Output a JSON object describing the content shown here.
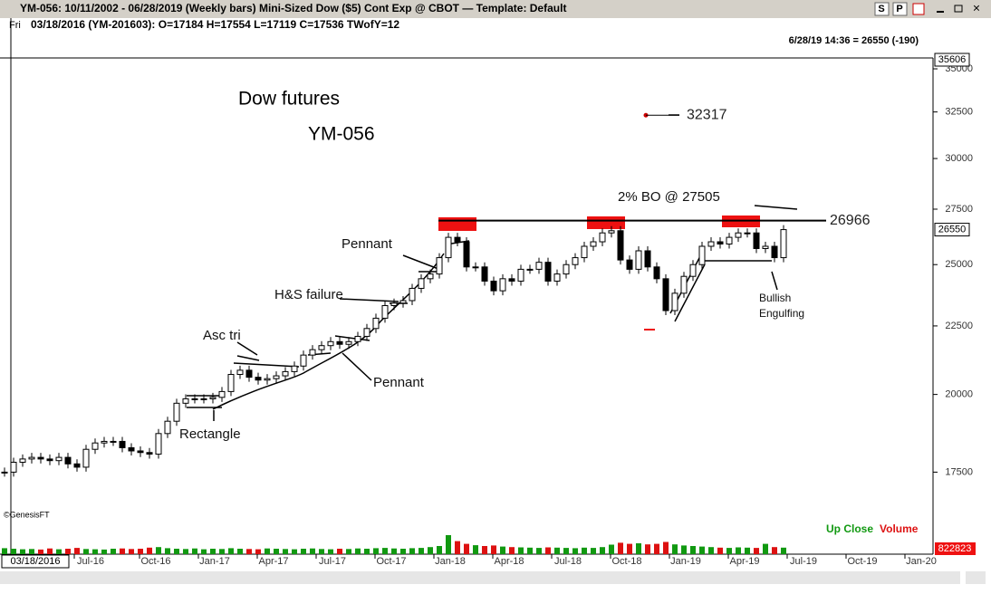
{
  "chart_data": {
    "type": "candlestick",
    "header": "YM-056:  10/11/2002 - 06/28/2019  (Weekly bars)   Mini-Sized Dow ($5) Cont Exp @ CBOT  —  Template: Default",
    "buttons": [
      "S",
      "P"
    ],
    "subheader_day": "Fri",
    "subheader": "03/18/2016 (YM-201603):  O=17184  H=17554  L=17119  C=17536  TWofY=12",
    "last_quote": "6/28/19 14:36 = 26550 (-190)",
    "title": "Dow futures",
    "subtitle": "YM-056",
    "copyright": "©GenesisFT",
    "start_date": "03/18/2016",
    "legend": [
      {
        "name": "Up Close",
        "color": "#119911"
      },
      {
        "name": "Volume",
        "color": "#dd1111"
      }
    ],
    "log_scale": true,
    "ylim": [
      16100,
      35550
    ],
    "yticks": [
      17500,
      20000,
      22500,
      25000,
      27500,
      30000,
      32500,
      35000
    ],
    "price_tags": [
      35606,
      26550
    ],
    "volume_tag": 822823,
    "vlim": [
      0,
      1000000
    ],
    "xtick_labels": [
      "Jul-16",
      "Oct-16",
      "Jan-17",
      "Apr-17",
      "Jul-17",
      "Oct-17",
      "Jan-18",
      "Apr-18",
      "Jul-18",
      "Oct-18",
      "Jan-19",
      "Apr-19",
      "Jul-19",
      "Oct-19",
      "Jan-20"
    ],
    "level": {
      "value": 26966,
      "label": "26966"
    },
    "target": {
      "value": 32317,
      "label": "32317"
    },
    "annotations": [
      "2% BO @ 27505",
      "Pennant",
      "H&S failure",
      "Asc tri",
      "Pennant",
      "Rectangle",
      "Bullish",
      "Engulfing"
    ],
    "series": [
      {
        "name": "Close",
        "color": "#000000",
        "values": [
          17500,
          17800,
          17900,
          17950,
          17900,
          17850,
          17950,
          17750,
          17650,
          18200,
          18400,
          18450,
          18450,
          18250,
          18150,
          18100,
          18050,
          18700,
          19100,
          19700,
          19850,
          19850,
          19850,
          19900,
          20100,
          20700,
          20850,
          20600,
          20500,
          20550,
          20650,
          20800,
          21000,
          21400,
          21600,
          21750,
          21900,
          21800,
          21900,
          22100,
          22400,
          22800,
          23300,
          23400,
          23500,
          24000,
          24400,
          24600,
          25300,
          26200,
          26000,
          24900,
          24900,
          24300,
          23900,
          24400,
          24300,
          24800,
          24800,
          25100,
          24300,
          24600,
          25000,
          25300,
          25800,
          26000,
          26400,
          26500,
          25200,
          24800,
          25600,
          24900,
          24400,
          23100,
          23800,
          24500,
          25000,
          25800,
          26000,
          25900,
          26200,
          26400,
          26400,
          25700,
          25800,
          25300,
          26550
        ]
      },
      {
        "name": "Volume",
        "values": [
          220000,
          200000,
          180000,
          190000,
          170000,
          210000,
          180000,
          200000,
          230000,
          190000,
          180000,
          170000,
          200000,
          210000,
          190000,
          200000,
          240000,
          260000,
          220000,
          200000,
          190000,
          210000,
          180000,
          200000,
          190000,
          220000,
          200000,
          190000,
          180000,
          210000,
          200000,
          190000,
          180000,
          200000,
          210000,
          190000,
          180000,
          200000,
          190000,
          210000,
          200000,
          220000,
          230000,
          210000,
          200000,
          220000,
          230000,
          260000,
          300000,
          700000,
          480000,
          380000,
          330000,
          300000,
          320000,
          280000,
          260000,
          250000,
          240000,
          230000,
          250000,
          240000,
          230000,
          220000,
          240000,
          230000,
          260000,
          350000,
          420000,
          380000,
          400000,
          360000,
          380000,
          450000,
          360000,
          320000,
          300000,
          280000,
          260000,
          240000,
          230000,
          250000,
          240000,
          230000,
          380000,
          260000,
          240000
        ]
      }
    ]
  }
}
